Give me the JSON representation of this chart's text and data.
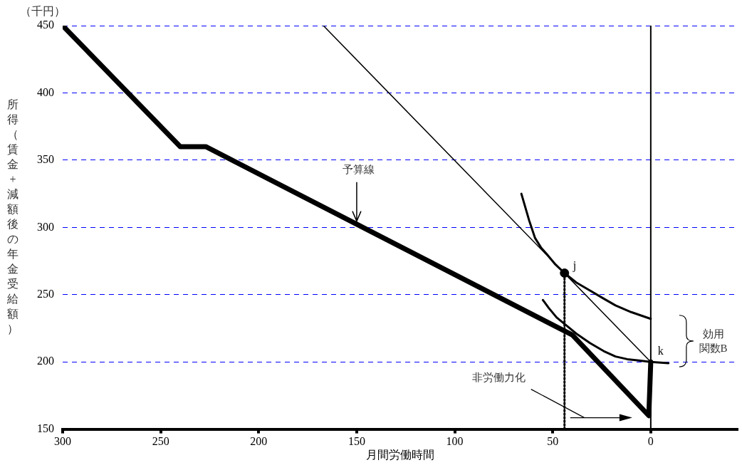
{
  "chart_data": {
    "type": "line",
    "xlabel": "月間労働時間",
    "ylabel": "所得（賃金+減額後の年金受給額）",
    "xlim": [
      300,
      -44
    ],
    "xticks": [
      300,
      250,
      200,
      150,
      100,
      50,
      0
    ],
    "ylim": [
      150,
      450
    ],
    "yticks": [
      150,
      200,
      250,
      300,
      350,
      400,
      450
    ],
    "grid": "y",
    "legend": false,
    "marker": "none",
    "ref_lines": [
      {
        "axis": "x",
        "value": 0,
        "color": "#000000"
      }
    ],
    "series": [
      {
        "color": "#000000",
        "x": [
          300,
          240,
          227,
          40,
          1,
          0
        ],
        "values": [
          450,
          360,
          360,
          220,
          160,
          200
        ]
      },
      {
        "color": "#000000",
        "x": [
          167,
          0
        ],
        "values": [
          450,
          200
        ]
      },
      {
        "color": "#000000",
        "x": [
          66,
          62,
          59,
          56,
          53,
          49,
          44,
          38,
          31,
          24,
          18,
          10,
          0
        ],
        "values": [
          325,
          305,
          292,
          285,
          280,
          273,
          266,
          259,
          253,
          247,
          242,
          237,
          232
        ]
      },
      {
        "color": "#000000",
        "x": [
          55,
          52,
          48,
          43,
          38,
          31,
          24,
          18,
          12,
          6,
          0,
          -9
        ],
        "values": [
          246,
          240,
          233,
          227,
          221,
          214,
          208,
          204,
          202,
          201,
          200,
          199
        ]
      },
      {
        "color": "#000000",
        "x": [
          44,
          44
        ],
        "values": [
          150,
          266
        ],
        "line_style": "dotted"
      },
      {
        "type": "scatter",
        "color": "#000000",
        "x": [
          44
        ],
        "values": [
          266
        ],
        "marker": "circle"
      }
    ],
    "annotations": [
      {
        "text": "予算線",
        "x": 150,
        "y": 303
      },
      "非労働力化",
      "効用関数B",
      {
        "text": "j",
        "x": 44,
        "y": 266
      },
      {
        "text": "k",
        "x": 0,
        "y": 200
      },
      "（千円）"
    ]
  }
}
